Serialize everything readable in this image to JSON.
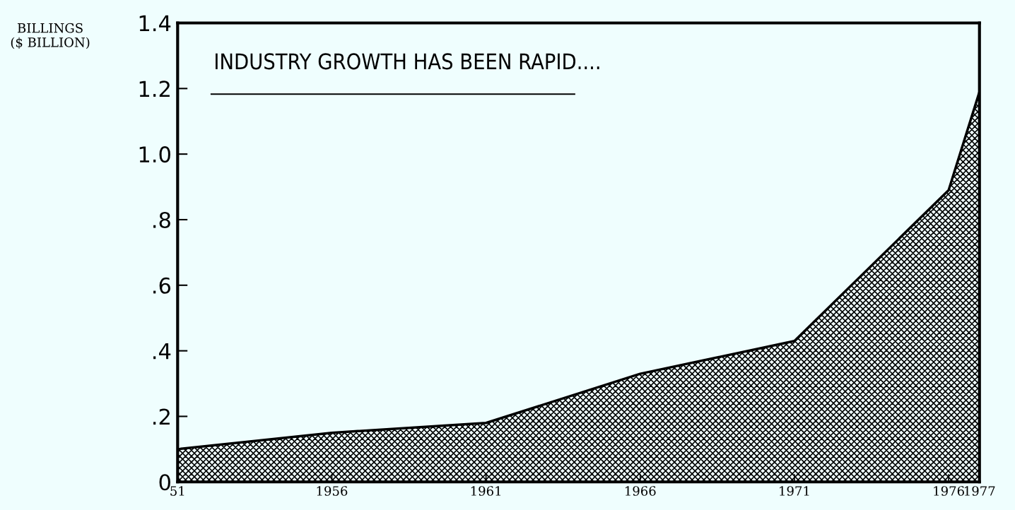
{
  "chart_data": {
    "type": "area",
    "title": "INDUSTRY GROWTH HAS BEEN RAPID....",
    "ylabel": "BILLINGS\n($ BILLION)",
    "x": [
      1951,
      1956,
      1961,
      1966,
      1971,
      1976,
      1977
    ],
    "series": [
      {
        "color": "#000000",
        "values": [
          0.1,
          0.15,
          0.18,
          0.33,
          0.43,
          0.89,
          1.19
        ]
      }
    ],
    "xlim": [
      1951,
      1977
    ],
    "xticks": [
      {
        "value": 1951,
        "label": "51"
      },
      1956,
      1961,
      1966,
      1971,
      1976,
      1977
    ],
    "ylim": [
      0,
      1.4
    ],
    "yticks": [
      0,
      {
        "value": 0.2,
        "label": ".2"
      },
      {
        "value": 0.4,
        "label": ".4"
      },
      {
        "value": 0.6,
        "label": ".6"
      },
      {
        "value": 0.8,
        "label": ".8"
      },
      {
        "value": 1.0,
        "label": "1.0"
      },
      {
        "value": 1.2,
        "label": "1.2"
      },
      {
        "value": 1.4,
        "label": "1.4"
      }
    ],
    "grid": false,
    "legend": false
  }
}
